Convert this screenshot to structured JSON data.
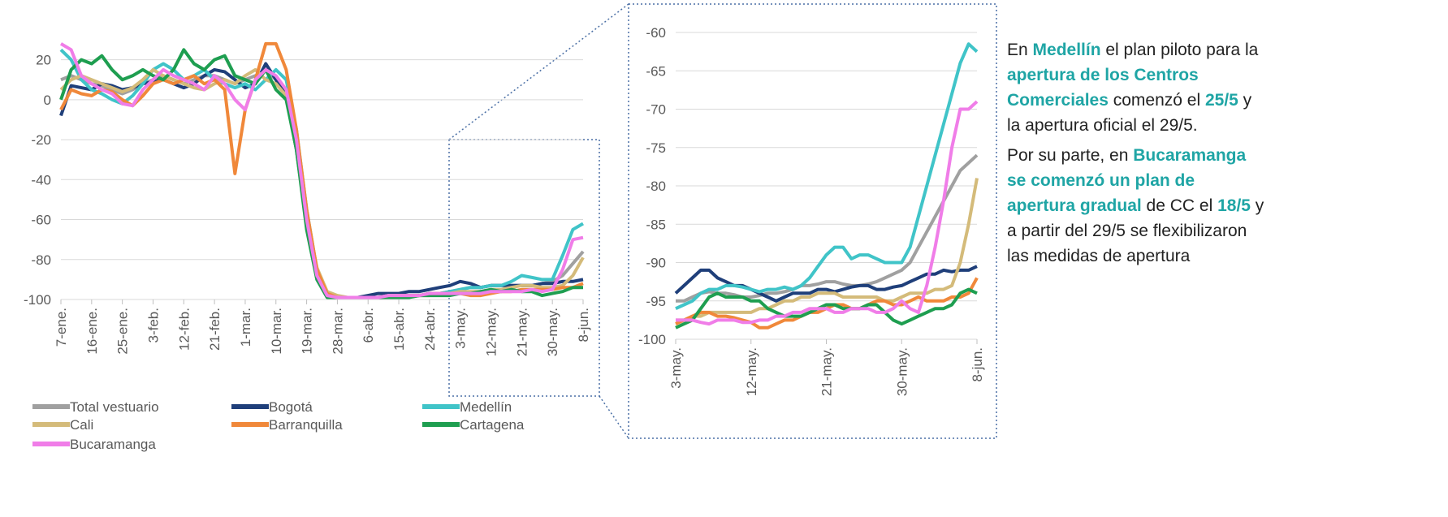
{
  "charts": [
    {
      "type": "line",
      "categories": [
        "7-ene.",
        null,
        null,
        "16-ene.",
        null,
        null,
        "25-ene.",
        null,
        null,
        "3-feb.",
        null,
        null,
        "12-feb.",
        null,
        null,
        "21-feb.",
        null,
        null,
        "1-mar.",
        null,
        null,
        "10-mar.",
        null,
        null,
        "19-mar.",
        null,
        null,
        "28-mar.",
        null,
        null,
        "6-abr.",
        null,
        null,
        "15-abr.",
        null,
        null,
        "24-abr.",
        null,
        null,
        "3-may.",
        null,
        null,
        "12-may.",
        null,
        null,
        "21-may.",
        null,
        null,
        "30-may.",
        null,
        null,
        "8-jun."
      ],
      "ylim": [
        -100,
        30
      ],
      "yticks": [
        -100,
        -80,
        -60,
        -40,
        -20,
        0,
        20
      ],
      "grid": true,
      "series": [
        {
          "name": "Total vestuario",
          "color": "#a0a0a0",
          "values": [
            10,
            12,
            10,
            8,
            7,
            5,
            3,
            5,
            8,
            10,
            12,
            10,
            8,
            10,
            12,
            12,
            10,
            8,
            10,
            12,
            15,
            10,
            3,
            -20,
            -60,
            -85,
            -97,
            -99,
            -99,
            -99,
            -99,
            -99,
            -98,
            -98,
            -98,
            -98,
            -97,
            -97,
            -96,
            -95,
            -94,
            -94,
            -93,
            -93,
            -93,
            -93,
            -93,
            -92,
            -91,
            -88,
            -82,
            -76
          ]
        },
        {
          "name": "Bogotá",
          "color": "#1f3f7a",
          "values": [
            -8,
            7,
            6,
            5,
            8,
            7,
            5,
            6,
            8,
            9,
            10,
            8,
            6,
            8,
            12,
            15,
            14,
            10,
            6,
            8,
            18,
            10,
            2,
            -25,
            -62,
            -88,
            -98,
            -99,
            -99,
            -99,
            -98,
            -97,
            -97,
            -97,
            -96,
            -96,
            -95,
            -94,
            -93,
            -91,
            -92,
            -94,
            -93,
            -93,
            -93,
            -93,
            -93,
            -92,
            -92,
            -91,
            -91,
            -90
          ]
        },
        {
          "name": "Medellín",
          "color": "#40c4c8",
          "values": [
            25,
            20,
            10,
            5,
            3,
            0,
            -2,
            2,
            8,
            15,
            18,
            15,
            10,
            12,
            15,
            10,
            8,
            6,
            8,
            5,
            10,
            15,
            10,
            -15,
            -55,
            -85,
            -97,
            -99,
            -99,
            -99,
            -99,
            -99,
            -98,
            -98,
            -98,
            -98,
            -97,
            -97,
            -96,
            -95,
            -94,
            -94,
            -93,
            -93,
            -91,
            -88,
            -89,
            -90,
            -90,
            -78,
            -65,
            -62
          ]
        },
        {
          "name": "Cali",
          "color": "#d4bb7a",
          "values": [
            5,
            10,
            12,
            10,
            8,
            6,
            4,
            6,
            10,
            15,
            12,
            10,
            8,
            6,
            5,
            8,
            10,
            8,
            12,
            15,
            10,
            8,
            2,
            -22,
            -58,
            -84,
            -96,
            -98,
            -99,
            -99,
            -99,
            -99,
            -98,
            -98,
            -98,
            -98,
            -98,
            -97,
            -97,
            -96,
            -96,
            -96,
            -95,
            -95,
            -94,
            -93,
            -93,
            -94,
            -94,
            -93,
            -88,
            -79
          ]
        },
        {
          "name": "Barranquilla",
          "color": "#f0883a",
          "values": [
            -5,
            5,
            3,
            2,
            5,
            4,
            0,
            -3,
            2,
            8,
            10,
            8,
            10,
            12,
            8,
            10,
            5,
            -37,
            -5,
            10,
            28,
            28,
            15,
            -15,
            -55,
            -85,
            -97,
            -99,
            -99,
            -99,
            -99,
            -99,
            -99,
            -98,
            -98,
            -98,
            -97,
            -97,
            -97,
            -97,
            -98,
            -98,
            -97,
            -96,
            -96,
            -95,
            -95,
            -95,
            -95,
            -94,
            -94,
            -92
          ]
        },
        {
          "name": "Cartagena",
          "color": "#1e9e50",
          "values": [
            0,
            15,
            20,
            18,
            22,
            15,
            10,
            12,
            15,
            12,
            10,
            15,
            25,
            18,
            15,
            20,
            22,
            12,
            10,
            8,
            15,
            5,
            0,
            -25,
            -65,
            -90,
            -99,
            -99,
            -99,
            -99,
            -99,
            -99,
            -99,
            -99,
            -99,
            -98,
            -98,
            -98,
            -98,
            -97,
            -97,
            -96,
            -95,
            -96,
            -95,
            -96,
            -96,
            -98,
            -97,
            -96,
            -94,
            -94
          ]
        },
        {
          "name": "Bucaramanga",
          "color": "#f07de8",
          "values": [
            28,
            25,
            12,
            8,
            5,
            3,
            -2,
            -3,
            5,
            10,
            15,
            12,
            10,
            8,
            5,
            12,
            8,
            0,
            -5,
            10,
            15,
            12,
            5,
            -20,
            -60,
            -88,
            -98,
            -99,
            -99,
            -99,
            -99,
            -99,
            -98,
            -98,
            -98,
            -98,
            -97,
            -97,
            -97,
            -97,
            -97,
            -97,
            -96,
            -96,
            -96,
            -96,
            -95,
            -96,
            -95,
            -85,
            -70,
            -69
          ]
        }
      ]
    },
    {
      "type": "line",
      "categories": [
        "3-may.",
        null,
        null,
        null,
        null,
        null,
        null,
        null,
        null,
        "12-may.",
        null,
        null,
        null,
        null,
        null,
        null,
        null,
        null,
        "21-may.",
        null,
        null,
        null,
        null,
        null,
        null,
        null,
        null,
        "30-may.",
        null,
        null,
        null,
        null,
        null,
        null,
        null,
        null,
        "8-jun."
      ],
      "ylim": [
        -100,
        -60
      ],
      "yticks": [
        -100,
        -95,
        -90,
        -85,
        -80,
        -75,
        -70,
        -65,
        -60
      ],
      "grid": true,
      "series": [
        {
          "color": "#a0a0a0",
          "values": [
            -95,
            -95,
            -94.5,
            -94,
            -93.8,
            -94,
            -94,
            -94.2,
            -94.5,
            -94.5,
            -94.3,
            -94,
            -94,
            -93.8,
            -93.5,
            -93,
            -93,
            -92.8,
            -92.5,
            -92.5,
            -92.8,
            -93,
            -93,
            -92.8,
            -92.5,
            -92,
            -91.5,
            -91,
            -90,
            -88,
            -86,
            -84,
            -82,
            -80,
            -78,
            -77,
            -76
          ]
        },
        {
          "color": "#1f3f7a",
          "values": [
            -94,
            -93,
            -92,
            -91,
            -91,
            -92,
            -92.5,
            -93,
            -93,
            -93.5,
            -94,
            -94.5,
            -95,
            -94.5,
            -94,
            -94,
            -94,
            -93.5,
            -93.5,
            -93.8,
            -93.5,
            -93.2,
            -93,
            -93,
            -93.5,
            -93.5,
            -93.2,
            -93,
            -92.5,
            -92,
            -91.5,
            -91.5,
            -91,
            -91.2,
            -91,
            -91,
            -90.5
          ]
        },
        {
          "color": "#40c4c8",
          "values": [
            -96,
            -95.5,
            -95,
            -94,
            -93.5,
            -93.5,
            -93,
            -93,
            -93.2,
            -93.5,
            -93.8,
            -93.5,
            -93.5,
            -93.2,
            -93.5,
            -93,
            -92,
            -90.5,
            -89,
            -88,
            -88,
            -89.5,
            -89,
            -89,
            -89.5,
            -90,
            -90,
            -90,
            -88,
            -84,
            -80,
            -76,
            -72,
            -68,
            -64,
            -61.5,
            -62.5
          ]
        },
        {
          "color": "#d4bb7a",
          "values": [
            -97.5,
            -97.5,
            -97,
            -97,
            -96.5,
            -96.5,
            -96.5,
            -96.5,
            -96.5,
            -96.5,
            -96,
            -96,
            -95.5,
            -95,
            -95,
            -94.5,
            -94.5,
            -94,
            -94,
            -94,
            -94.5,
            -94.5,
            -94.5,
            -94.5,
            -94.5,
            -95,
            -95,
            -94.5,
            -94,
            -94,
            -94,
            -93.5,
            -93.5,
            -93,
            -90,
            -85,
            -79
          ]
        },
        {
          "color": "#f0883a",
          "values": [
            -98,
            -97.5,
            -97,
            -96.5,
            -96.5,
            -97,
            -97,
            -97.2,
            -97.5,
            -97.8,
            -98.5,
            -98.5,
            -98,
            -97.5,
            -97.5,
            -97,
            -96.5,
            -96.5,
            -96,
            -95.5,
            -95.5,
            -96,
            -96,
            -95.5,
            -95,
            -95,
            -95.5,
            -95.5,
            -95,
            -94.5,
            -95,
            -95,
            -95,
            -94.5,
            -94.5,
            -94,
            -92
          ]
        },
        {
          "color": "#1e9e50",
          "values": [
            -98.5,
            -98,
            -97.5,
            -96,
            -94.5,
            -94,
            -94.5,
            -94.5,
            -94.5,
            -95,
            -95,
            -96,
            -96.5,
            -97,
            -97,
            -97,
            -96.5,
            -96,
            -95.5,
            -95.5,
            -96,
            -96,
            -96,
            -95.5,
            -95.5,
            -96.5,
            -97.5,
            -98,
            -97.5,
            -97,
            -96.5,
            -96,
            -96,
            -95.5,
            -94,
            -93.5,
            -94
          ]
        },
        {
          "color": "#f07de8",
          "values": [
            -97.5,
            -97.5,
            -97.5,
            -97.8,
            -98,
            -97.5,
            -97.5,
            -97.5,
            -97.8,
            -97.8,
            -97.5,
            -97.5,
            -97,
            -97,
            -96.5,
            -96.5,
            -96,
            -96,
            -96,
            -96.5,
            -96.5,
            -96,
            -96,
            -96,
            -96.5,
            -96.5,
            -96,
            -95,
            -96,
            -96.5,
            -93,
            -88,
            -82,
            -75,
            -70,
            -70,
            -69
          ]
        }
      ]
    }
  ],
  "note": {
    "paragraphs": [
      [
        {
          "text": "En ",
          "bold": false
        },
        {
          "text": "Medellín",
          "bold": true
        },
        {
          "text": " el plan piloto para la ",
          "bold": false
        },
        {
          "text": "apertura de los Centros Comerciales",
          "bold": true
        },
        {
          "text": " comenzó el ",
          "bold": false
        },
        {
          "text": "25/5",
          "bold": true
        },
        {
          "text": " y la apertura oficial el 29/5.",
          "bold": false
        }
      ],
      [
        {
          "text": "Por su parte, en ",
          "bold": false
        },
        {
          "text": "Bucaramanga se comenzó un plan de apertura gradual",
          "bold": true
        },
        {
          "text": " de CC el ",
          "bold": false
        },
        {
          "text": "18/5",
          "bold": true
        },
        {
          "text": " y a partir del 29/5 se flexibilizaron las medidas de apertura",
          "bold": false
        }
      ]
    ]
  }
}
